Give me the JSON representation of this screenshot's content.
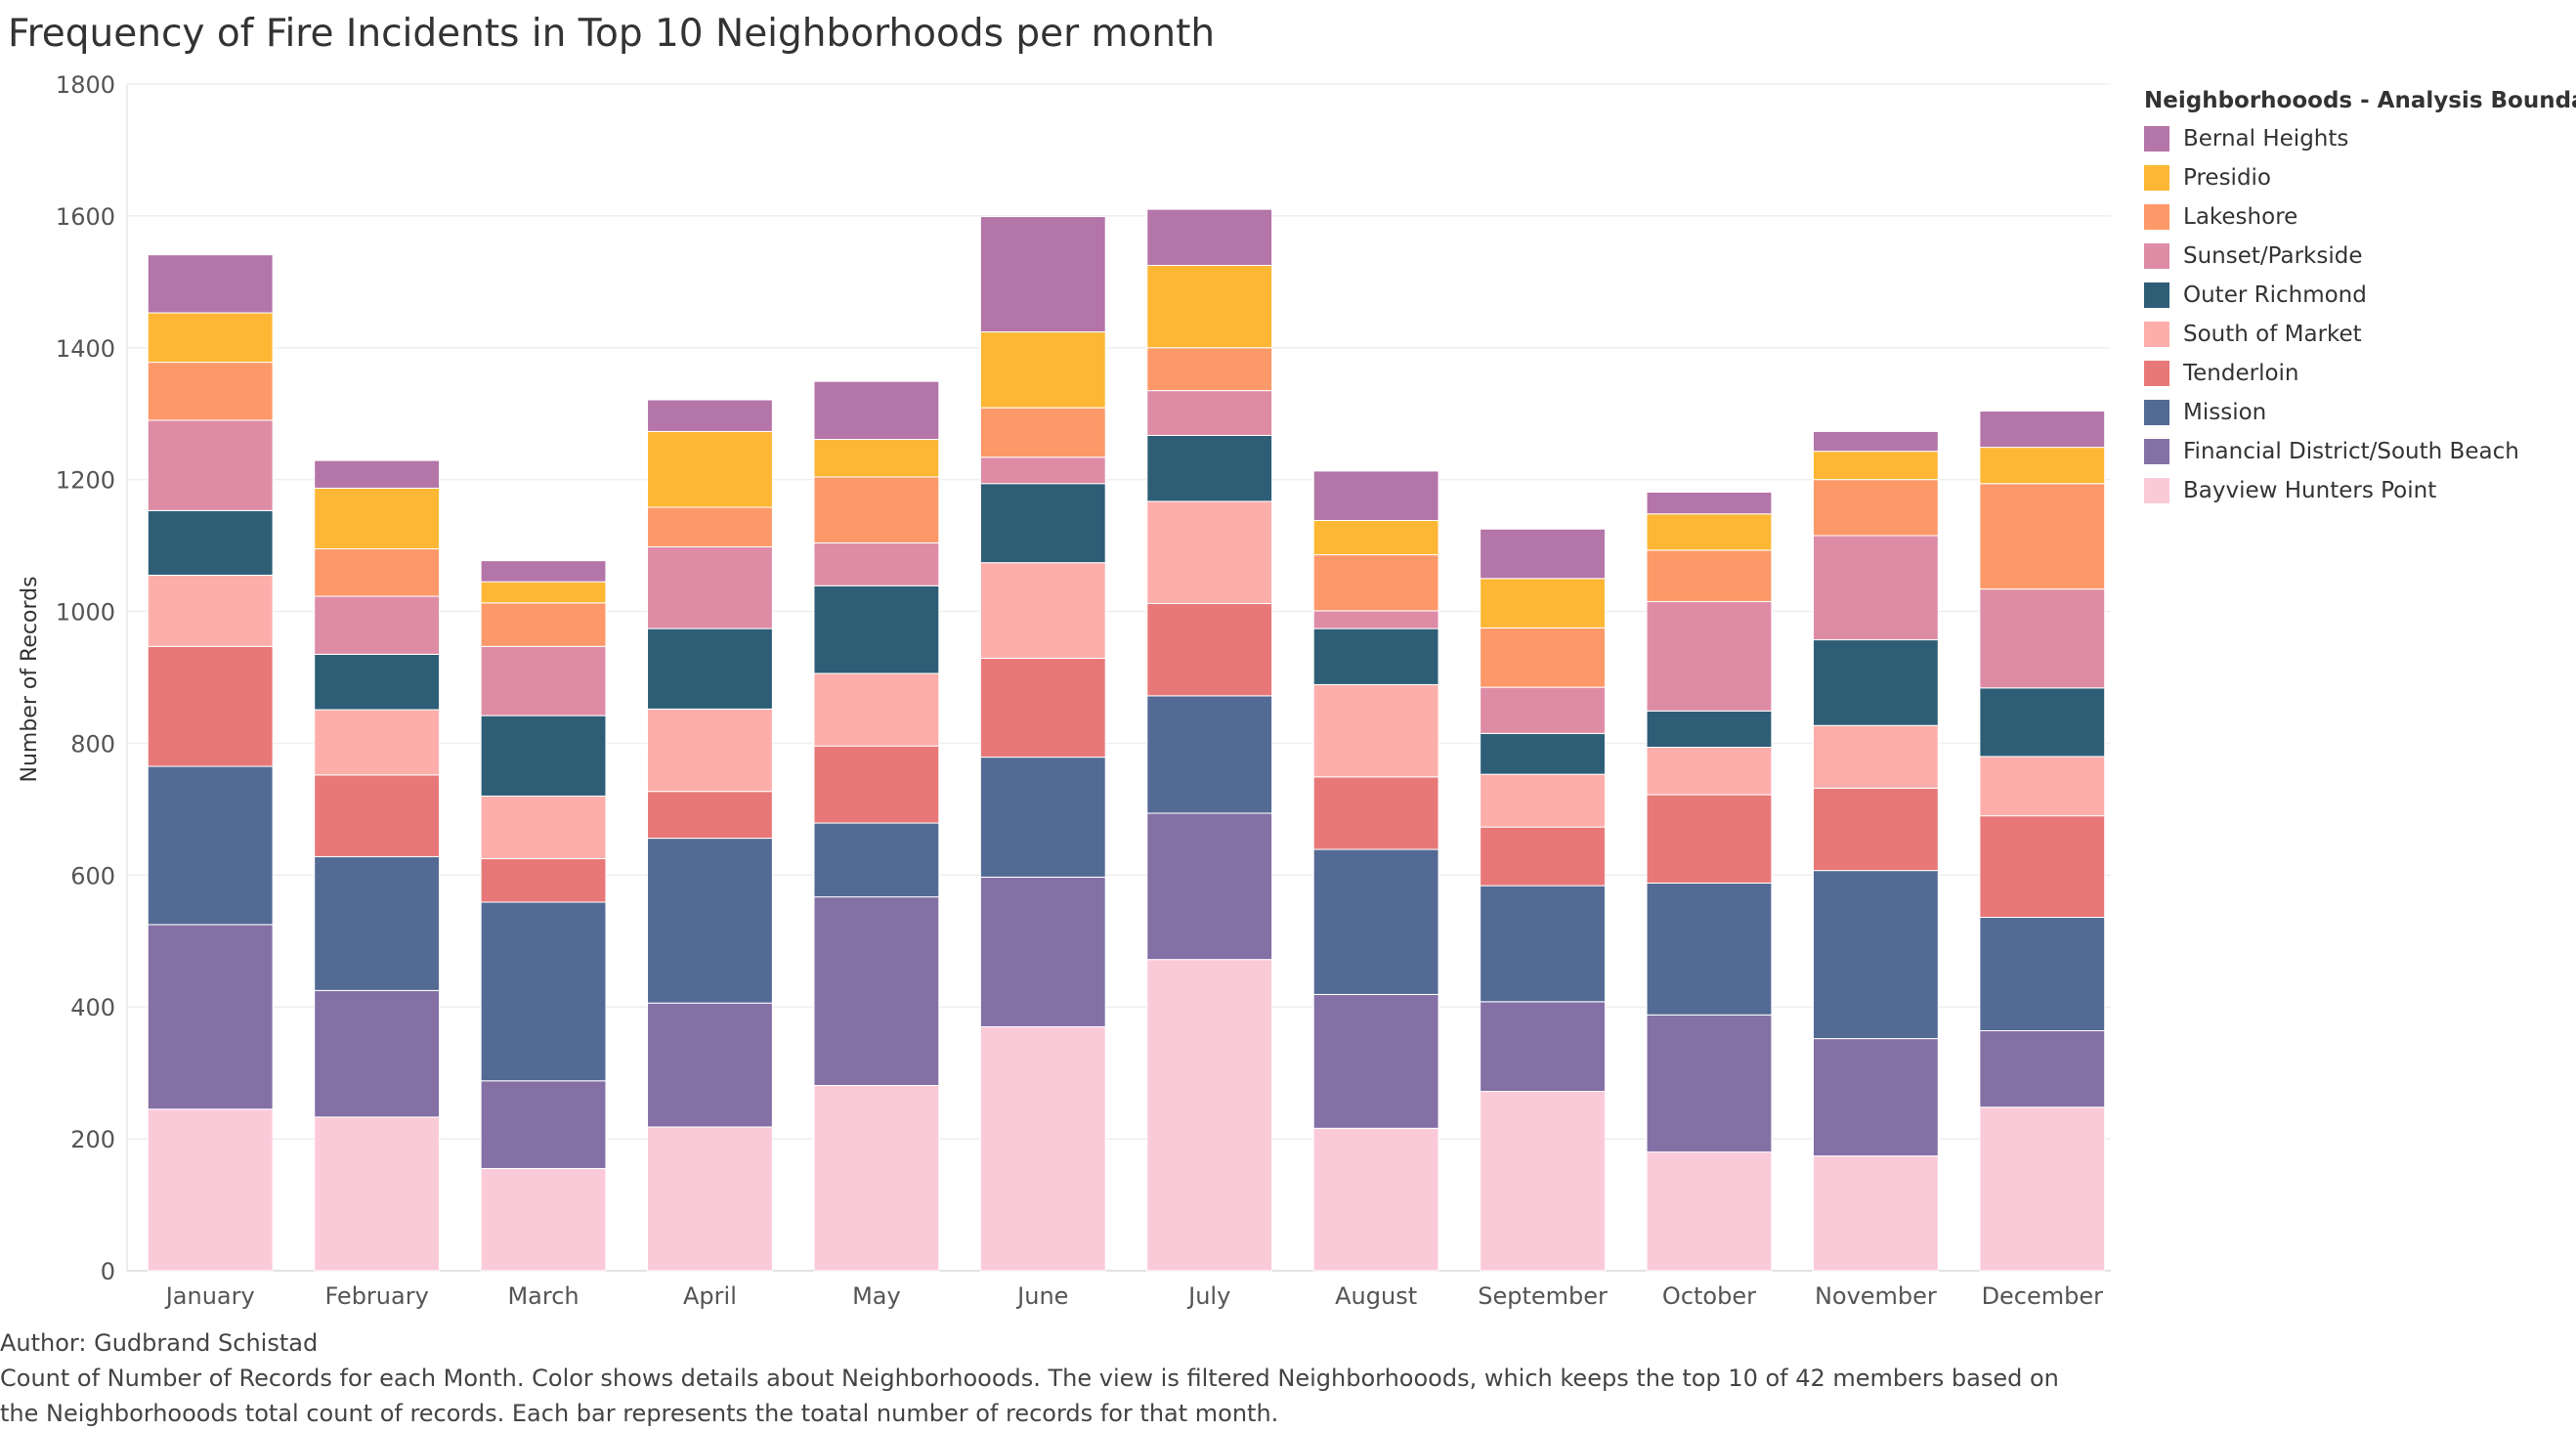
{
  "chart_data": {
    "type": "bar",
    "stacked": true,
    "title": "Frequency of Fire Incidents in Top 10 Neighborhoods per month",
    "xlabel": "",
    "ylabel": "Number of Records",
    "ylim": [
      0,
      1800
    ],
    "yticks": [
      0,
      200,
      400,
      600,
      800,
      1000,
      1200,
      1400,
      1600,
      1800
    ],
    "grid": true,
    "legend_position": "right",
    "legend_title": "Neighborhooods - Analysis Boundaries",
    "categories": [
      "January",
      "February",
      "March",
      "April",
      "May",
      "June",
      "July",
      "August",
      "September",
      "October",
      "November",
      "December"
    ],
    "series": [
      {
        "name": "Bayview Hunters Point",
        "color": "#fbcad9",
        "values": [
          245,
          233,
          155,
          218,
          281,
          370,
          472,
          216,
          272,
          180,
          174,
          248
        ]
      },
      {
        "name": "Financial District/South Beach",
        "color": "#8470a5",
        "values": [
          280,
          192,
          133,
          188,
          286,
          227,
          222,
          203,
          136,
          208,
          178,
          116
        ]
      },
      {
        "name": "Mission",
        "color": "#536a94",
        "values": [
          240,
          203,
          271,
          250,
          112,
          182,
          178,
          220,
          176,
          200,
          255,
          172
        ]
      },
      {
        "name": "Tenderloin",
        "color": "#e87878",
        "values": [
          182,
          124,
          66,
          71,
          117,
          150,
          140,
          110,
          89,
          134,
          125,
          154
        ]
      },
      {
        "name": "South of Market",
        "color": "#fdaeab",
        "values": [
          108,
          99,
          95,
          125,
          110,
          145,
          155,
          140,
          80,
          72,
          95,
          90
        ]
      },
      {
        "name": "Outer Richmond",
        "color": "#2e5e76",
        "values": [
          98,
          84,
          122,
          122,
          133,
          120,
          100,
          85,
          62,
          55,
          130,
          104
        ]
      },
      {
        "name": "Sunset/Parkside",
        "color": "#de8ca6",
        "values": [
          137,
          88,
          105,
          124,
          65,
          40,
          68,
          27,
          70,
          166,
          158,
          150
        ]
      },
      {
        "name": "Lakeshore",
        "color": "#fd9868",
        "values": [
          88,
          72,
          66,
          60,
          100,
          75,
          65,
          85,
          90,
          78,
          85,
          160
        ]
      },
      {
        "name": "Presidio",
        "color": "#fdb734",
        "values": [
          75,
          92,
          32,
          115,
          57,
          115,
          125,
          52,
          75,
          55,
          43,
          55
        ]
      },
      {
        "name": "Bernal Heights",
        "color": "#b475a9",
        "values": [
          88,
          42,
          32,
          48,
          88,
          175,
          85,
          75,
          75,
          33,
          30,
          55
        ]
      }
    ]
  },
  "footer": {
    "author": "Author: Gudbrand Schistad",
    "line1": "Count of Number of Records for each Month.  Color shows details about Neighborhooods. The view is filtered Neighborhooods, which keeps the top 10 of 42 members based on",
    "line2": "the Neighborhooods total count of records. Each bar represents the toatal number of records for that month."
  }
}
